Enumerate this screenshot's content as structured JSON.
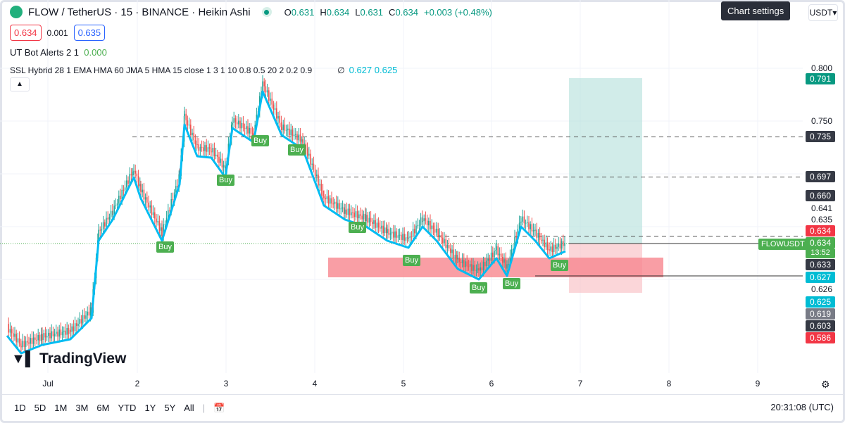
{
  "header": {
    "symbol": "FLOW / TetherUS · 15 · BINANCE · Heikin Ashi",
    "o_label": "O",
    "o": "0.631",
    "h_label": "H",
    "h": "0.634",
    "l_label": "L",
    "l": "0.631",
    "c_label": "C",
    "c": "0.634",
    "change": "+0.003 (+0.48%)"
  },
  "quote": {
    "bid": "0.634",
    "spread": "0.001",
    "ask": "0.635"
  },
  "indicators": [
    {
      "name": "UT Bot Alerts",
      "params": "2 1",
      "value": "0.000"
    },
    {
      "name": "SSL Hybrid",
      "params": "28 1 EMA HMA 60 JMA 5 HMA 15 close 1 3 1 10 0.8 0.5 20 2 0.2 0.9",
      "symbol": "∅",
      "v1": "0.627",
      "v2": "0.625"
    }
  ],
  "tooltip": "Chart settings",
  "currency": "USDT",
  "price_axis": {
    "ticks": [
      "0.800",
      "0.750",
      "0.641",
      "0.635",
      "0.626"
    ],
    "labels": [
      {
        "v": "0.791",
        "color": "#089981"
      },
      {
        "v": "0.735",
        "color": "#363a45"
      },
      {
        "v": "0.697",
        "color": "#363a45"
      },
      {
        "v": "0.660",
        "color": "#363a45"
      },
      {
        "v": "0.634",
        "color": "#f23645"
      },
      {
        "v": "0.634",
        "color": "#4caf50"
      },
      {
        "v": "0.633",
        "color": "#363a45"
      },
      {
        "v": "0.627",
        "color": "#00bcd4"
      },
      {
        "v": "0.625",
        "color": "#00bcd4"
      },
      {
        "v": "0.619",
        "color": "#787b86"
      },
      {
        "v": "0.603",
        "color": "#363a45"
      },
      {
        "v": "0.586",
        "color": "#f23645"
      }
    ],
    "countdown": "13:52",
    "symbol_tag": "FLOWUSDT"
  },
  "time_axis": [
    "Jul",
    "2",
    "3",
    "4",
    "5",
    "6",
    "7",
    "8",
    "9"
  ],
  "signals": {
    "buy_label": "Buy"
  },
  "brand": "TradingView",
  "ranges": [
    "1D",
    "5D",
    "1M",
    "3M",
    "6M",
    "YTD",
    "1Y",
    "5Y",
    "All"
  ],
  "clock": "20:31:08 (UTC)"
}
